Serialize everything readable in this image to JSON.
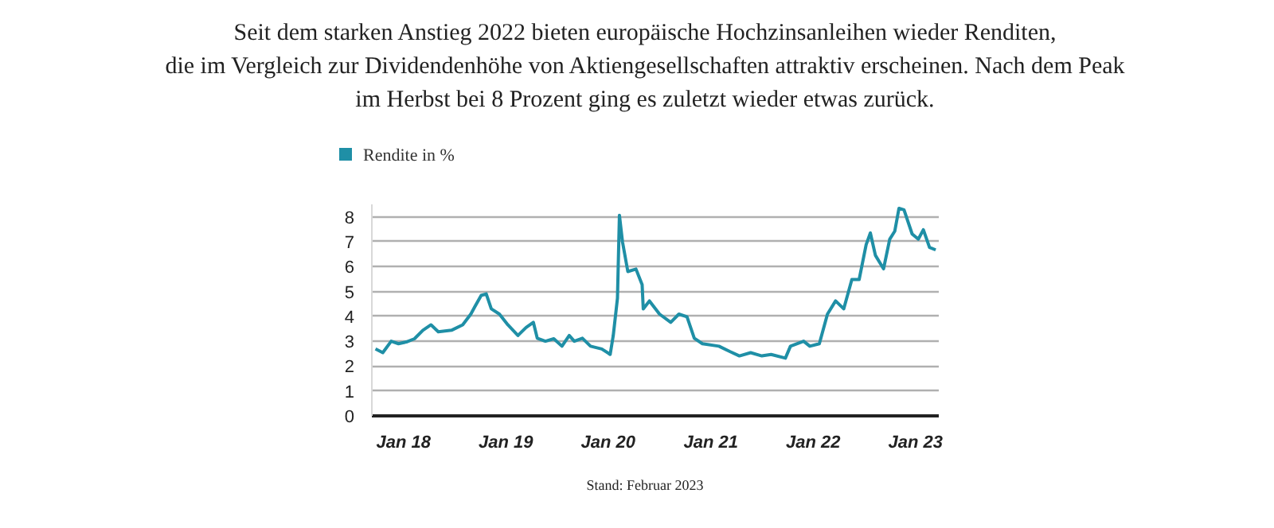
{
  "chart_data": {
    "type": "line",
    "title": "Seit dem starken Anstieg 2022 bieten europäische Hochzinsanleihen wieder Renditen,\ndie im Vergleich zur Dividendenhöhe von Aktiengesellschaften attraktiv erscheinen. Nach dem Peak\nim Herbst bei 8 Prozent ging es zuletzt wieder etwas zurück.",
    "x": [
      "2017-09-23",
      "2017-10-19",
      "2017-11-18",
      "2017-12-14",
      "2018-01-11",
      "2018-02-09",
      "2018-03-11",
      "2018-04-09",
      "2018-05-05",
      "2018-06-21",
      "2018-07-31",
      "2018-08-29",
      "2018-09-13",
      "2018-10-05",
      "2018-10-23",
      "2018-11-10",
      "2018-12-09",
      "2019-01-08",
      "2019-02-13",
      "2019-03-14",
      "2019-04-09",
      "2019-04-23",
      "2019-05-22",
      "2019-06-21",
      "2019-07-20",
      "2019-08-15",
      "2019-09-02",
      "2019-10-01",
      "2019-10-30",
      "2019-12-09",
      "2020-01-08",
      "2020-01-19",
      "2020-02-03",
      "2020-02-10",
      "2020-02-21",
      "2020-03-11",
      "2020-04-09",
      "2020-05-01",
      "2020-05-05",
      "2020-05-27",
      "2020-07-02",
      "2020-08-11",
      "2020-09-09",
      "2020-10-08",
      "2020-11-03",
      "2020-12-02",
      "2021-01-30",
      "2021-03-11",
      "2021-04-13",
      "2021-05-23",
      "2021-07-02",
      "2021-08-04",
      "2021-09-24",
      "2021-10-12",
      "2021-11-28",
      "2021-12-20",
      "2022-01-23",
      "2022-02-21",
      "2022-03-22",
      "2022-04-20",
      "2022-05-19",
      "2022-06-14",
      "2022-07-09",
      "2022-07-24",
      "2022-08-11",
      "2022-09-09",
      "2022-10-01",
      "2022-10-19",
      "2022-11-03",
      "2022-11-21",
      "2022-12-20",
      "2023-01-11",
      "2023-01-29",
      "2023-02-20",
      "2023-03-14"
    ],
    "series": [
      {
        "name": "Rendite in %",
        "color": "#1f8fa6",
        "values": [
          2.69,
          2.54,
          3.0,
          2.9,
          2.97,
          3.1,
          3.44,
          3.66,
          3.38,
          3.44,
          3.66,
          4.09,
          4.4,
          4.84,
          4.9,
          4.3,
          4.09,
          3.66,
          3.23,
          3.55,
          3.76,
          3.12,
          3.0,
          3.1,
          2.8,
          3.23,
          3.0,
          3.12,
          2.8,
          2.69,
          2.47,
          3.23,
          4.73,
          8.06,
          6.99,
          5.8,
          5.9,
          5.27,
          4.3,
          4.62,
          4.09,
          3.76,
          4.09,
          3.98,
          3.12,
          2.9,
          2.8,
          2.58,
          2.41,
          2.54,
          2.41,
          2.47,
          2.32,
          2.8,
          3.0,
          2.8,
          2.9,
          4.09,
          4.62,
          4.3,
          5.48,
          5.48,
          6.88,
          7.35,
          6.45,
          5.91,
          7.1,
          7.42,
          8.34,
          8.28,
          7.31,
          7.1,
          7.48,
          6.77,
          6.67
        ]
      }
    ],
    "xlim": [
      "2017-09-10",
      "2023-03-25"
    ],
    "xticks": [
      {
        "value": "2018-01-01",
        "label": "Jan 18"
      },
      {
        "value": "2019-01-01",
        "label": "Jan 19"
      },
      {
        "value": "2020-01-01",
        "label": "Jan 20"
      },
      {
        "value": "2021-01-01",
        "label": "Jan 21"
      },
      {
        "value": "2022-01-01",
        "label": "Jan 22"
      },
      {
        "value": "2023-01-01",
        "label": "Jan 23"
      }
    ],
    "ylim": [
      0,
      8.5
    ],
    "yticks": [
      0,
      1,
      2,
      3,
      4,
      5,
      6,
      7,
      8
    ],
    "grid": "y",
    "legend": "top left",
    "annotations": [
      "Stand: Februar 2023"
    ]
  }
}
